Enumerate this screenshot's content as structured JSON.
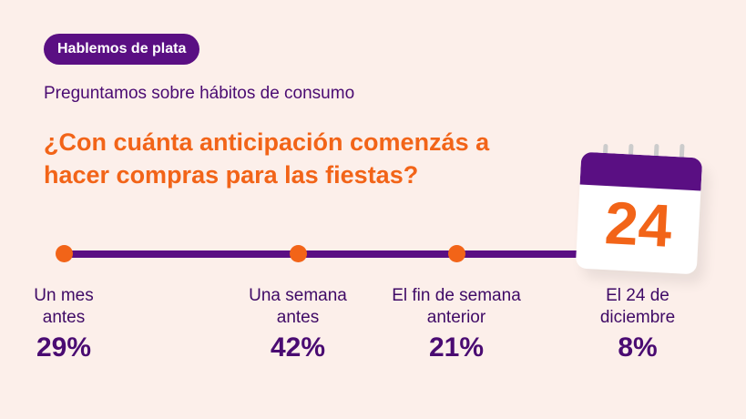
{
  "badge": "Hablemos de plata",
  "subtitle": "Preguntamos sobre hábitos de consumo",
  "question": "¿Con cuánta anticipación comenzás a hacer compras para las fiestas?",
  "calendar_day": "24",
  "options": [
    {
      "label": "Un mes antes",
      "percent": "29%"
    },
    {
      "label": "Una semana antes",
      "percent": "42%"
    },
    {
      "label": "El fin de semana anterior",
      "percent": "21%"
    },
    {
      "label": "El 24 de diciembre",
      "percent": "8%"
    }
  ],
  "colors": {
    "purple": "#5a0f83",
    "orange": "#f26418",
    "background": "#fcefea"
  }
}
